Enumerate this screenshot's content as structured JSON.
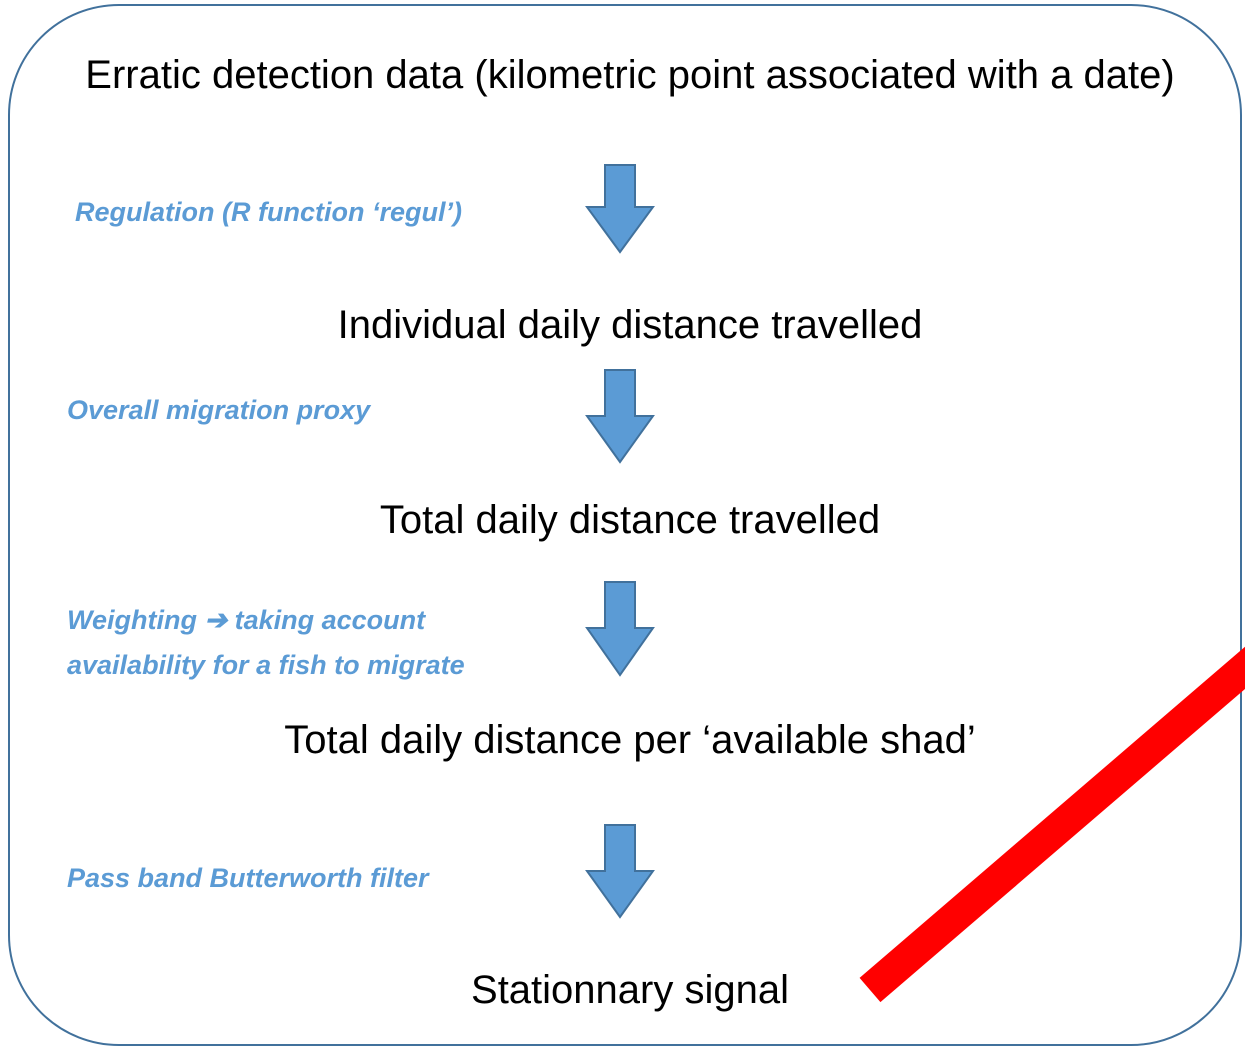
{
  "nodes": [
    {
      "label": "Erratic detection data (kilometric point associated with a date)"
    },
    {
      "label": "Individual daily distance travelled"
    },
    {
      "label": "Total daily distance travelled"
    },
    {
      "label": "Total daily distance per ‘available shad’"
    },
    {
      "label": "Stationnary signal"
    }
  ],
  "edges": [
    {
      "label": "Regulation (R function ‘regul’)"
    },
    {
      "label": "Overall migration proxy"
    },
    {
      "lines": [
        "Weighting ➔ taking account",
        "availability for a fish to migrate"
      ]
    },
    {
      "label": "Pass band Butterworth filter"
    }
  ]
}
